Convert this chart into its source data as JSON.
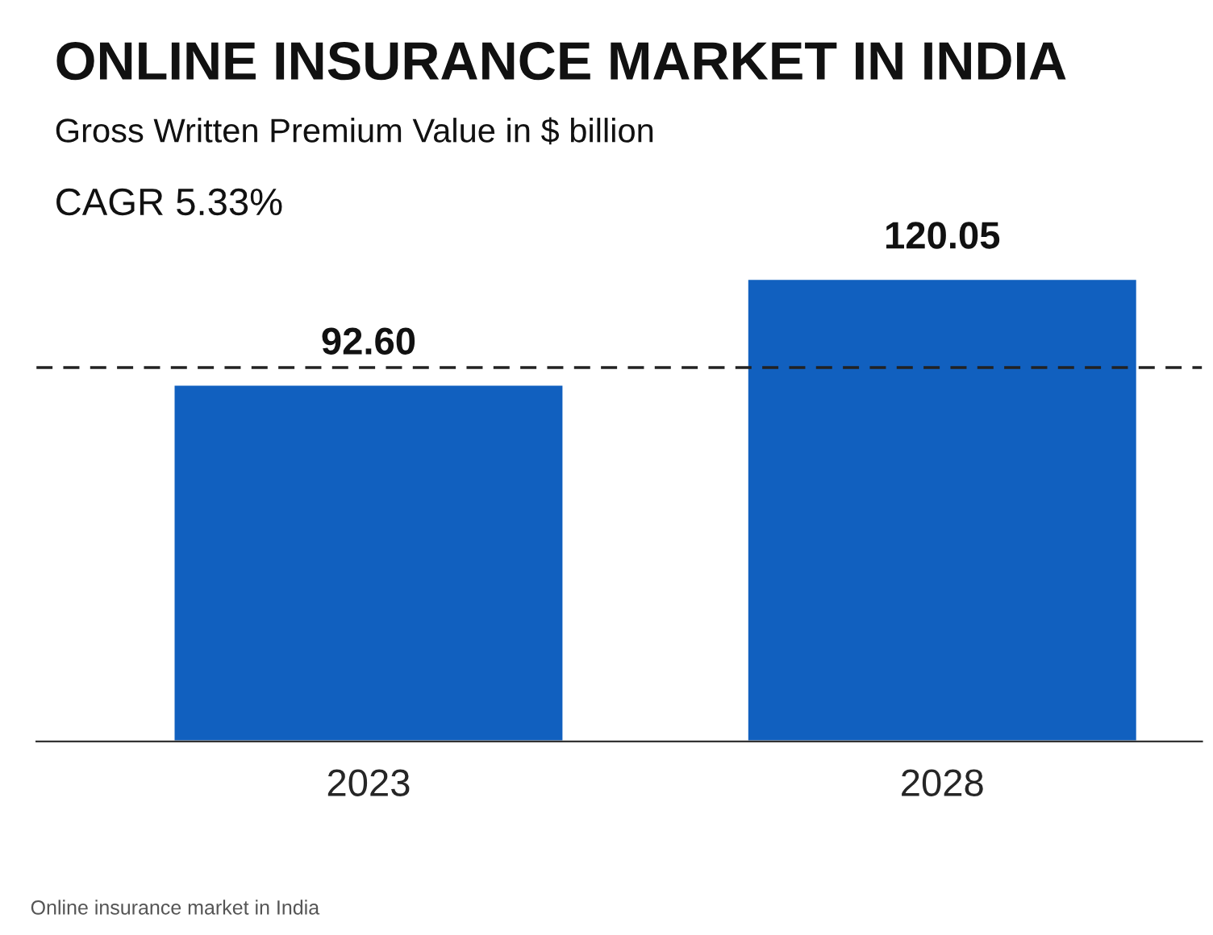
{
  "chart_data": {
    "type": "bar",
    "title": "ONLINE INSURANCE MARKET IN INDIA",
    "subtitle": "Gross Written Premium Value in $ billion",
    "annotations": [
      "CAGR 5.33%",
      "Online insurance market in India"
    ],
    "categories": [
      "2023",
      "2028"
    ],
    "values": [
      92.6,
      120.05
    ],
    "color": "#1160bf",
    "data_labels": true,
    "value_labels": [
      "92.60",
      "120.05"
    ],
    "tick_labels": "x",
    "grid": false,
    "legend": false,
    "ref_lines": [
      {
        "axis": "y",
        "value": 97,
        "color": "#222222",
        "line_style": "dashed"
      }
    ]
  }
}
